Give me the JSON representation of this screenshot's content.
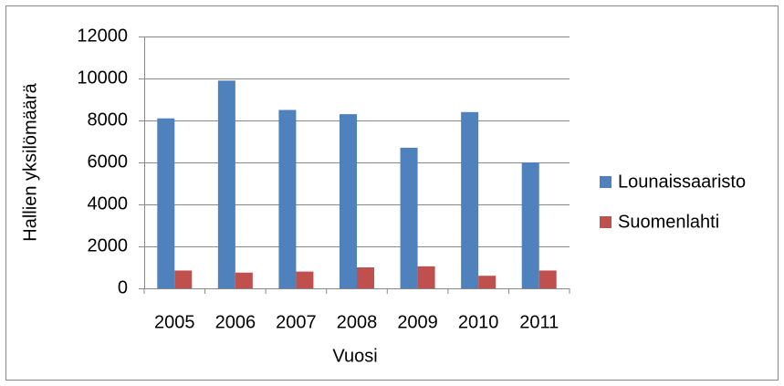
{
  "chart_data": {
    "type": "bar",
    "x_label": "Vuosi",
    "y_label": "Hallien yksilömäärä",
    "categories": [
      "2005",
      "2006",
      "2007",
      "2008",
      "2009",
      "2010",
      "2011"
    ],
    "series": [
      {
        "name": "Lounaissaaristo",
        "color": "#4f81bd",
        "values": [
          8100,
          9900,
          8500,
          8300,
          6700,
          8400,
          6000
        ]
      },
      {
        "name": "Suomenlahti",
        "color": "#c0504d",
        "values": [
          850,
          750,
          800,
          1000,
          1050,
          600,
          850
        ]
      }
    ],
    "ylim": [
      0,
      12000
    ],
    "yticks": [
      0,
      2000,
      4000,
      6000,
      8000,
      10000,
      12000
    ],
    "grid": true,
    "legend": "right"
  }
}
